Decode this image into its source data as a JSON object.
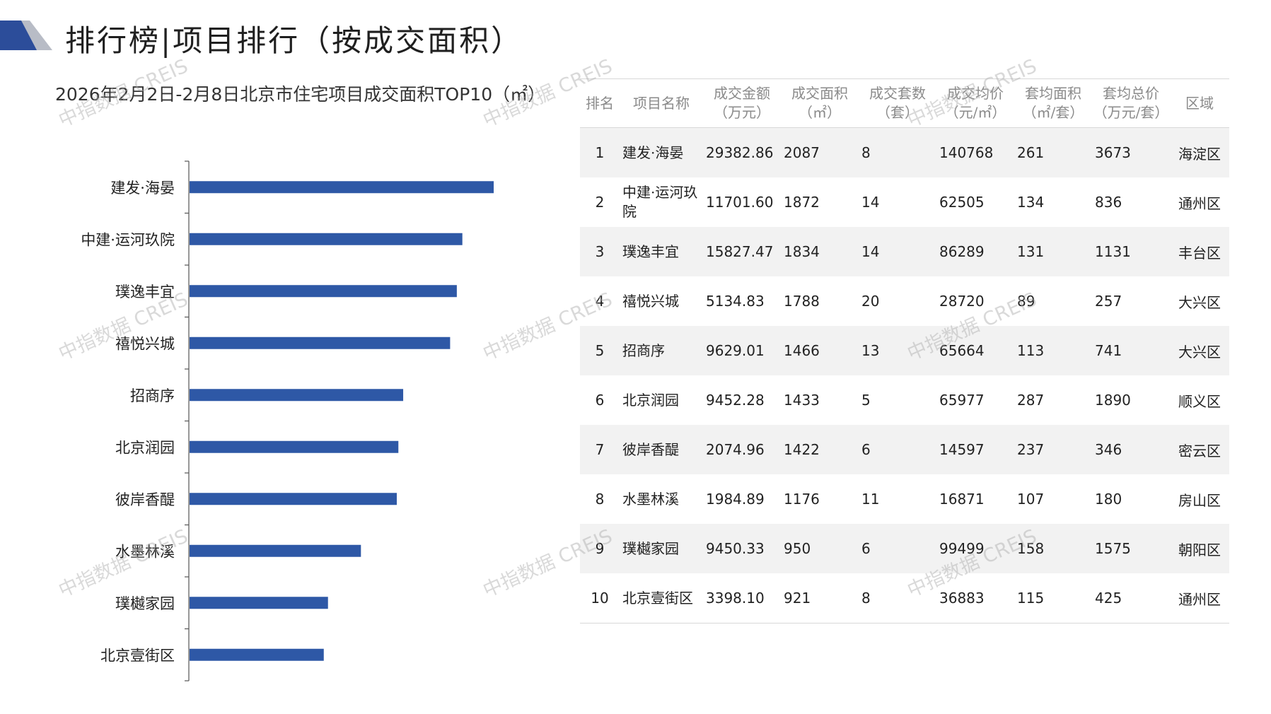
{
  "header": {
    "title": "排行榜|项目排行（按成交面积）",
    "subtitle": "2026年2月2日-2月8日北京市住宅项目成交面积TOP10（㎡）"
  },
  "watermark": "中指数据 CREIS",
  "colors": {
    "bar": "#2e58a6",
    "logo_dark": "#2c4d9a",
    "logo_gray": "#b8bcc6"
  },
  "chart_data": {
    "type": "bar",
    "orientation": "horizontal",
    "categories": [
      "建发·海晏",
      "中建·运河玖院",
      "璞逸丰宜",
      "禧悦兴城",
      "招商序",
      "北京润园",
      "彼岸香醍",
      "水墨林溪",
      "璞樾家园",
      "北京壹街区"
    ],
    "values": [
      2087,
      1872,
      1834,
      1788,
      1466,
      1433,
      1422,
      1176,
      950,
      921
    ],
    "xlim": [
      0,
      2500
    ],
    "grid": false
  },
  "table": {
    "headers": [
      [
        "排名"
      ],
      [
        "项目名称"
      ],
      [
        "成交金额",
        "（万元）"
      ],
      [
        "成交面积",
        "（㎡）"
      ],
      [
        "成交套数",
        "（套）"
      ],
      [
        "成交均价",
        "（元/㎡）"
      ],
      [
        "套均面积",
        "（㎡/套）"
      ],
      [
        "套均总价",
        "（万元/套）"
      ],
      [
        "区域"
      ]
    ],
    "rows": [
      [
        "1",
        "建发·海晏",
        "29382.86",
        "2087",
        "8",
        "140768",
        "261",
        "3673",
        "海淀区"
      ],
      [
        "2",
        "中建·运河玖院",
        "11701.60",
        "1872",
        "14",
        "62505",
        "134",
        "836",
        "通州区"
      ],
      [
        "3",
        "璞逸丰宜",
        "15827.47",
        "1834",
        "14",
        "86289",
        "131",
        "1131",
        "丰台区"
      ],
      [
        "4",
        "禧悦兴城",
        "5134.83",
        "1788",
        "20",
        "28720",
        "89",
        "257",
        "大兴区"
      ],
      [
        "5",
        "招商序",
        "9629.01",
        "1466",
        "13",
        "65664",
        "113",
        "741",
        "大兴区"
      ],
      [
        "6",
        "北京润园",
        "9452.28",
        "1433",
        "5",
        "65977",
        "287",
        "1890",
        "顺义区"
      ],
      [
        "7",
        "彼岸香醍",
        "2074.96",
        "1422",
        "6",
        "14597",
        "237",
        "346",
        "密云区"
      ],
      [
        "8",
        "水墨林溪",
        "1984.89",
        "1176",
        "11",
        "16871",
        "107",
        "180",
        "房山区"
      ],
      [
        "9",
        "璞樾家园",
        "9450.33",
        "950",
        "6",
        "99499",
        "158",
        "1575",
        "朝阳区"
      ],
      [
        "10",
        "北京壹街区",
        "3398.10",
        "921",
        "8",
        "36883",
        "115",
        "425",
        "通州区"
      ]
    ]
  }
}
